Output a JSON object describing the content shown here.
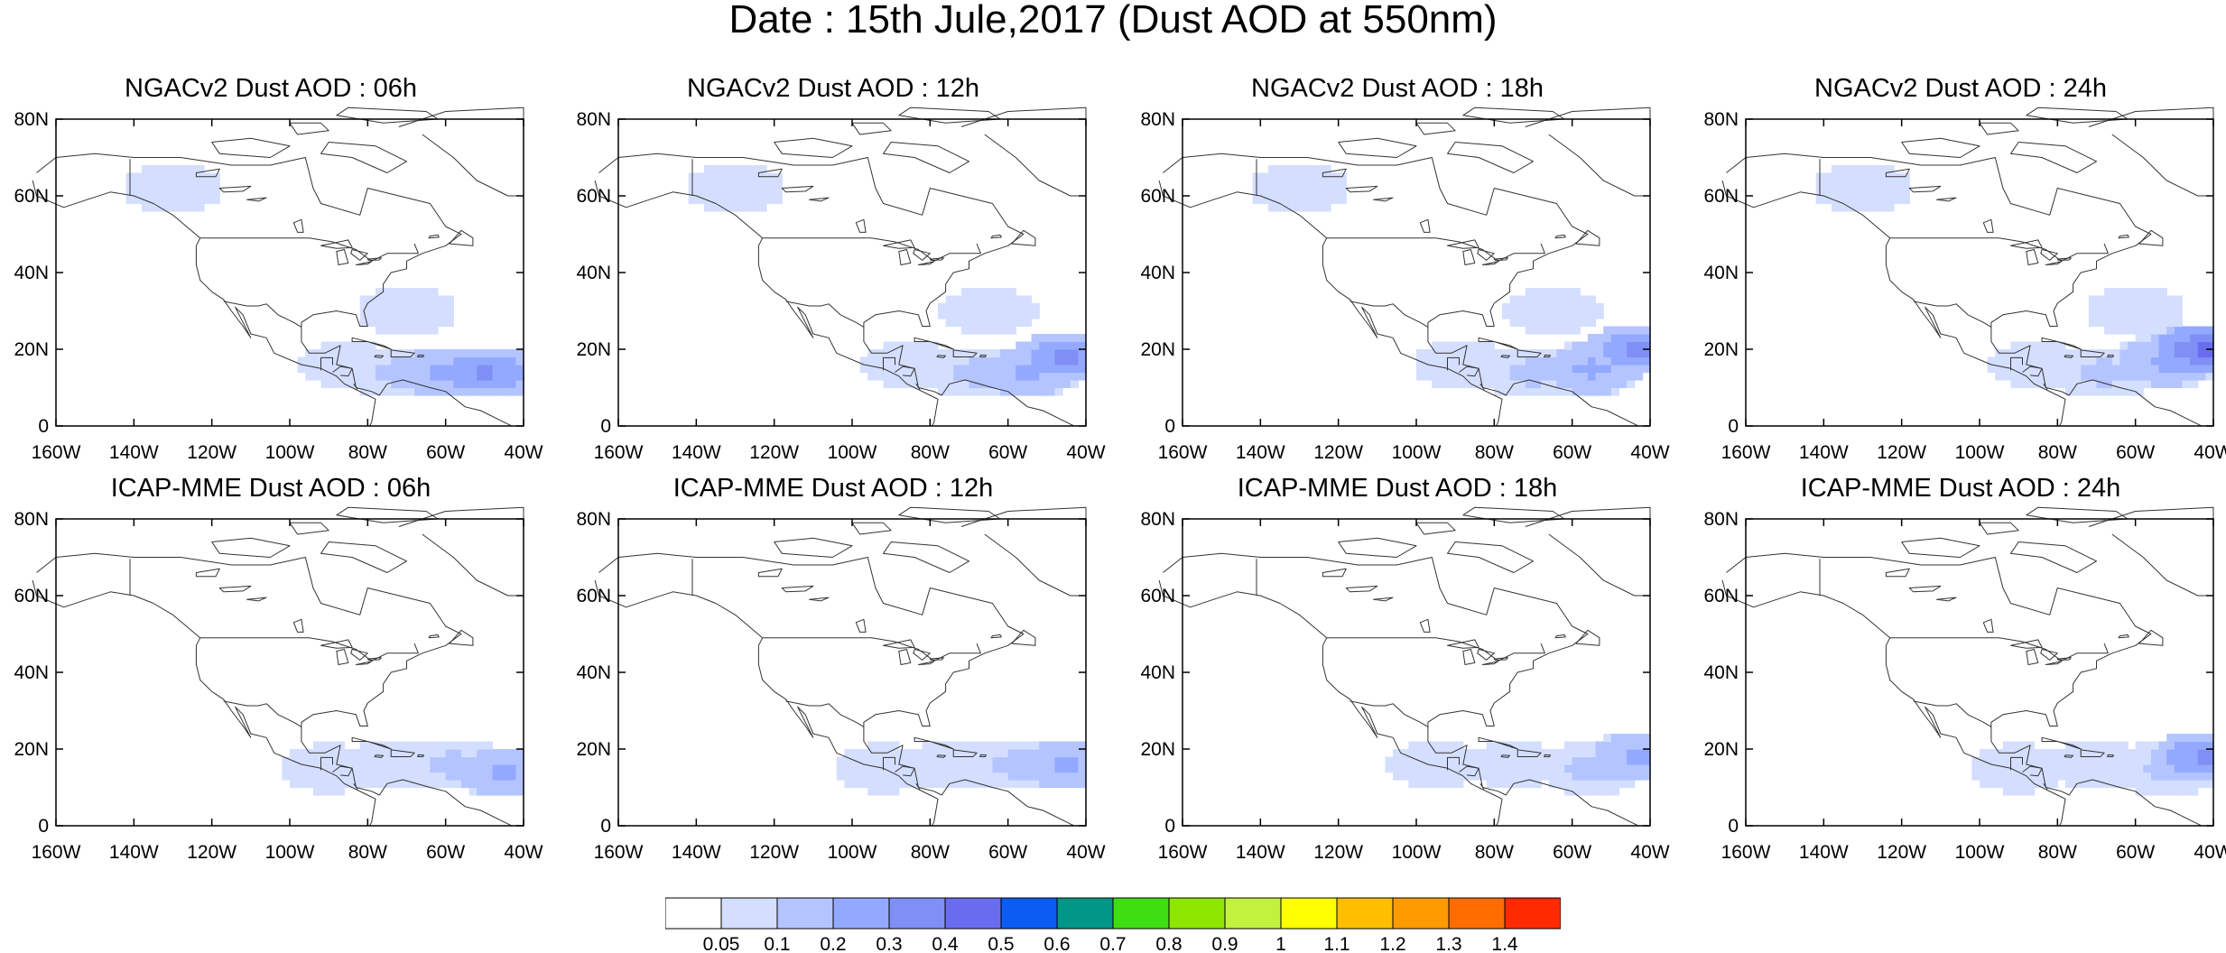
{
  "title": "Date : 15th Jule,2017 (Dust AOD at 550nm)",
  "panel_titles": [
    "NGACv2 Dust AOD : 06h",
    "NGACv2 Dust AOD : 12h",
    "NGACv2 Dust AOD : 18h",
    "NGACv2 Dust AOD : 24h",
    "ICAP-MME Dust AOD : 06h",
    "ICAP-MME Dust AOD : 12h",
    "ICAP-MME Dust AOD : 18h",
    "ICAP-MME Dust AOD : 24h"
  ],
  "lon_ticks": [
    "160W",
    "140W",
    "120W",
    "100W",
    "80W",
    "60W",
    "40W"
  ],
  "lat_ticks": [
    "0",
    "20N",
    "40N",
    "60N",
    "80N"
  ],
  "colorbar": {
    "labels": [
      "0.05",
      "0.1",
      "0.2",
      "0.3",
      "0.4",
      "0.5",
      "0.6",
      "0.7",
      "0.8",
      "0.9",
      "1",
      "1.1",
      "1.2",
      "1.3",
      "1.4"
    ],
    "colors": [
      "#ffffff",
      "#d4deff",
      "#b4c4ff",
      "#93a9ff",
      "#7f8ff5",
      "#6a6cf0",
      "#0a5cf2",
      "#009688",
      "#3fde12",
      "#8ce600",
      "#c2f23d",
      "#ffff00",
      "#ffbf00",
      "#ff9b00",
      "#ff6c00",
      "#ff2a00"
    ]
  },
  "chart_data": {
    "type": "heatmap",
    "variable": "Dust AOD at 550nm",
    "lon_range": [
      -160,
      -40
    ],
    "lat_range": [
      0,
      80
    ],
    "fields": [
      {
        "model": "NGACv2",
        "hour": "06h",
        "plumes": [
          {
            "lon": -50,
            "lat": 14,
            "level": 4
          },
          {
            "lon": -60,
            "lat": 14,
            "level": 3
          },
          {
            "lon": -72,
            "lat": 14,
            "level": 2
          },
          {
            "lon": -85,
            "lat": 16,
            "level": 1
          },
          {
            "lon": -70,
            "lat": 30,
            "level": 1
          },
          {
            "lon": -130,
            "lat": 62,
            "level": 1
          }
        ]
      },
      {
        "model": "NGACv2",
        "hour": "12h",
        "plumes": [
          {
            "lon": -45,
            "lat": 18,
            "level": 4
          },
          {
            "lon": -55,
            "lat": 14,
            "level": 3
          },
          {
            "lon": -68,
            "lat": 14,
            "level": 2
          },
          {
            "lon": -85,
            "lat": 16,
            "level": 1
          },
          {
            "lon": -65,
            "lat": 30,
            "level": 1
          },
          {
            "lon": -130,
            "lat": 62,
            "level": 1
          }
        ]
      },
      {
        "model": "NGACv2",
        "hour": "18h",
        "plumes": [
          {
            "lon": -43,
            "lat": 20,
            "level": 4
          },
          {
            "lon": -55,
            "lat": 15,
            "level": 3
          },
          {
            "lon": -70,
            "lat": 14,
            "level": 2
          },
          {
            "lon": -88,
            "lat": 16,
            "level": 1
          },
          {
            "lon": -65,
            "lat": 30,
            "level": 1
          },
          {
            "lon": -130,
            "lat": 62,
            "level": 1
          }
        ]
      },
      {
        "model": "NGACv2",
        "hour": "24h",
        "plumes": [
          {
            "lon": -42,
            "lat": 20,
            "level": 5
          },
          {
            "lon": -52,
            "lat": 17,
            "level": 3
          },
          {
            "lon": -68,
            "lat": 14,
            "level": 2
          },
          {
            "lon": -85,
            "lat": 16,
            "level": 1
          },
          {
            "lon": -60,
            "lat": 30,
            "level": 1
          },
          {
            "lon": -130,
            "lat": 62,
            "level": 1
          }
        ]
      },
      {
        "model": "ICAP-MME",
        "hour": "06h",
        "plumes": [
          {
            "lon": -45,
            "lat": 14,
            "level": 3
          },
          {
            "lon": -58,
            "lat": 16,
            "level": 2
          },
          {
            "lon": -75,
            "lat": 16,
            "level": 1
          },
          {
            "lon": -90,
            "lat": 15,
            "level": 1
          }
        ]
      },
      {
        "model": "ICAP-MME",
        "hour": "12h",
        "plumes": [
          {
            "lon": -45,
            "lat": 16,
            "level": 3
          },
          {
            "lon": -58,
            "lat": 16,
            "level": 2
          },
          {
            "lon": -75,
            "lat": 16,
            "level": 1
          },
          {
            "lon": -92,
            "lat": 15,
            "level": 1
          }
        ]
      },
      {
        "model": "ICAP-MME",
        "hour": "18h",
        "plumes": [
          {
            "lon": -42,
            "lat": 18,
            "level": 3
          },
          {
            "lon": -55,
            "lat": 15,
            "level": 2
          },
          {
            "lon": -75,
            "lat": 16,
            "level": 1
          },
          {
            "lon": -95,
            "lat": 16,
            "level": 1
          }
        ]
      },
      {
        "model": "ICAP-MME",
        "hour": "24h",
        "plumes": [
          {
            "lon": -42,
            "lat": 18,
            "level": 4
          },
          {
            "lon": -52,
            "lat": 15,
            "level": 2
          },
          {
            "lon": -70,
            "lat": 16,
            "level": 1
          },
          {
            "lon": -90,
            "lat": 15,
            "level": 1
          }
        ]
      }
    ]
  }
}
